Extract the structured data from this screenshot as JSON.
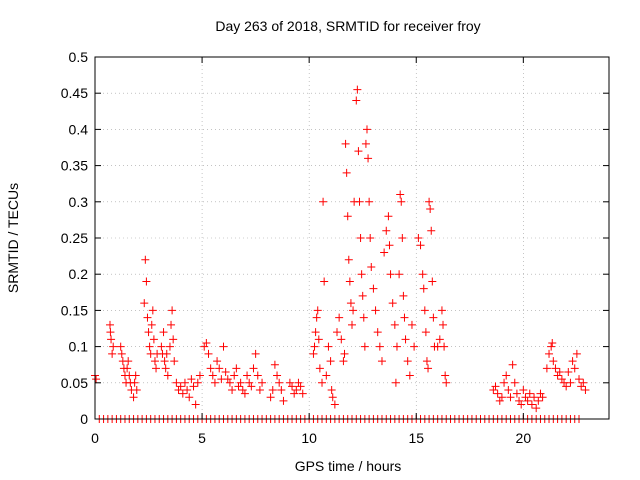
{
  "chart_data": {
    "type": "scatter",
    "title": "Day 263 of 2018, SRMTID for receiver froy",
    "xlabel": "GPS time / hours",
    "ylabel": "SRMTID / TECUs",
    "xlim": [
      0,
      24
    ],
    "ylim": [
      0,
      0.5
    ],
    "xticks": [
      0,
      5,
      10,
      15,
      20
    ],
    "xtick_labels": [
      "0",
      "5",
      "10",
      "15",
      "20"
    ],
    "yticks": [
      0,
      0.05,
      0.1,
      0.15,
      0.2,
      0.25,
      0.3,
      0.35,
      0.4,
      0.45,
      0.5
    ],
    "ytick_labels": [
      "0",
      "0.05",
      "0.1",
      "0.15",
      "0.2",
      "0.25",
      "0.3",
      "0.35",
      "0.4",
      "0.45",
      "0.5"
    ],
    "grid": true,
    "marker": "+",
    "color": "#ff0000",
    "series": [
      {
        "name": "SRMTID",
        "points": [
          [
            0.0,
            0.06
          ],
          [
            0.05,
            0.055
          ],
          [
            0.7,
            0.13
          ],
          [
            0.72,
            0.12
          ],
          [
            0.75,
            0.11
          ],
          [
            0.8,
            0.09
          ],
          [
            0.85,
            0.1
          ],
          [
            1.2,
            0.1
          ],
          [
            1.25,
            0.09
          ],
          [
            1.3,
            0.08
          ],
          [
            1.35,
            0.07
          ],
          [
            1.4,
            0.06
          ],
          [
            1.45,
            0.05
          ],
          [
            1.5,
            0.07
          ],
          [
            1.55,
            0.08
          ],
          [
            1.6,
            0.06
          ],
          [
            1.65,
            0.05
          ],
          [
            1.7,
            0.04
          ],
          [
            1.8,
            0.03
          ],
          [
            1.85,
            0.05
          ],
          [
            1.9,
            0.06
          ],
          [
            1.95,
            0.04
          ],
          [
            2.3,
            0.16
          ],
          [
            2.35,
            0.22
          ],
          [
            2.4,
            0.19
          ],
          [
            2.45,
            0.14
          ],
          [
            2.5,
            0.12
          ],
          [
            2.55,
            0.1
          ],
          [
            2.6,
            0.09
          ],
          [
            2.65,
            0.13
          ],
          [
            2.7,
            0.15
          ],
          [
            2.75,
            0.11
          ],
          [
            2.8,
            0.08
          ],
          [
            2.85,
            0.07
          ],
          [
            2.9,
            0.09
          ],
          [
            3.1,
            0.1
          ],
          [
            3.15,
            0.09
          ],
          [
            3.2,
            0.12
          ],
          [
            3.25,
            0.08
          ],
          [
            3.3,
            0.07
          ],
          [
            3.35,
            0.09
          ],
          [
            3.4,
            0.06
          ],
          [
            3.5,
            0.1
          ],
          [
            3.55,
            0.13
          ],
          [
            3.6,
            0.15
          ],
          [
            3.65,
            0.11
          ],
          [
            3.7,
            0.08
          ],
          [
            3.8,
            0.05
          ],
          [
            3.9,
            0.04
          ],
          [
            4.0,
            0.045
          ],
          [
            4.1,
            0.035
          ],
          [
            4.2,
            0.05
          ],
          [
            4.3,
            0.04
          ],
          [
            4.4,
            0.03
          ],
          [
            4.5,
            0.055
          ],
          [
            4.6,
            0.045
          ],
          [
            4.7,
            0.02
          ],
          [
            4.8,
            0.05
          ],
          [
            4.9,
            0.06
          ],
          [
            5.1,
            0.1
          ],
          [
            5.2,
            0.105
          ],
          [
            5.3,
            0.09
          ],
          [
            5.4,
            0.07
          ],
          [
            5.5,
            0.06
          ],
          [
            5.6,
            0.05
          ],
          [
            5.7,
            0.08
          ],
          [
            5.8,
            0.07
          ],
          [
            5.9,
            0.055
          ],
          [
            6.0,
            0.1
          ],
          [
            6.1,
            0.065
          ],
          [
            6.2,
            0.055
          ],
          [
            6.3,
            0.05
          ],
          [
            6.4,
            0.04
          ],
          [
            6.5,
            0.06
          ],
          [
            6.6,
            0.07
          ],
          [
            6.7,
            0.045
          ],
          [
            6.8,
            0.05
          ],
          [
            6.9,
            0.04
          ],
          [
            7.0,
            0.035
          ],
          [
            7.1,
            0.06
          ],
          [
            7.2,
            0.05
          ],
          [
            7.3,
            0.045
          ],
          [
            7.4,
            0.07
          ],
          [
            7.5,
            0.09
          ],
          [
            7.6,
            0.06
          ],
          [
            7.7,
            0.04
          ],
          [
            7.8,
            0.05
          ],
          [
            8.2,
            0.03
          ],
          [
            8.3,
            0.04
          ],
          [
            8.4,
            0.075
          ],
          [
            8.5,
            0.06
          ],
          [
            8.6,
            0.05
          ],
          [
            8.7,
            0.04
          ],
          [
            8.8,
            0.025
          ],
          [
            9.1,
            0.05
          ],
          [
            9.2,
            0.045
          ],
          [
            9.3,
            0.035
          ],
          [
            9.4,
            0.04
          ],
          [
            9.5,
            0.05
          ],
          [
            9.6,
            0.045
          ],
          [
            9.7,
            0.035
          ],
          [
            10.2,
            0.09
          ],
          [
            10.25,
            0.1
          ],
          [
            10.3,
            0.12
          ],
          [
            10.35,
            0.14
          ],
          [
            10.4,
            0.15
          ],
          [
            10.45,
            0.11
          ],
          [
            10.5,
            0.07
          ],
          [
            10.6,
            0.05
          ],
          [
            10.65,
            0.3
          ],
          [
            10.7,
            0.19
          ],
          [
            10.8,
            0.06
          ],
          [
            10.9,
            0.1
          ],
          [
            11.0,
            0.08
          ],
          [
            11.05,
            0.04
          ],
          [
            11.1,
            0.03
          ],
          [
            11.2,
            0.02
          ],
          [
            11.3,
            0.12
          ],
          [
            11.4,
            0.14
          ],
          [
            11.5,
            0.11
          ],
          [
            11.6,
            0.08
          ],
          [
            11.65,
            0.09
          ],
          [
            11.7,
            0.38
          ],
          [
            11.75,
            0.34
          ],
          [
            11.8,
            0.28
          ],
          [
            11.85,
            0.22
          ],
          [
            11.9,
            0.19
          ],
          [
            11.95,
            0.16
          ],
          [
            12.0,
            0.13
          ],
          [
            12.05,
            0.15
          ],
          [
            12.1,
            0.3
          ],
          [
            12.2,
            0.44
          ],
          [
            12.25,
            0.455
          ],
          [
            12.3,
            0.37
          ],
          [
            12.35,
            0.3
          ],
          [
            12.4,
            0.25
          ],
          [
            12.45,
            0.2
          ],
          [
            12.5,
            0.17
          ],
          [
            12.55,
            0.14
          ],
          [
            12.6,
            0.1
          ],
          [
            12.65,
            0.38
          ],
          [
            12.7,
            0.4
          ],
          [
            12.75,
            0.36
          ],
          [
            12.8,
            0.3
          ],
          [
            12.85,
            0.25
          ],
          [
            12.9,
            0.21
          ],
          [
            13.0,
            0.18
          ],
          [
            13.1,
            0.15
          ],
          [
            13.2,
            0.12
          ],
          [
            13.3,
            0.1
          ],
          [
            13.4,
            0.08
          ],
          [
            13.5,
            0.23
          ],
          [
            13.6,
            0.26
          ],
          [
            13.7,
            0.28
          ],
          [
            13.75,
            0.24
          ],
          [
            13.8,
            0.2
          ],
          [
            13.9,
            0.16
          ],
          [
            14.0,
            0.13
          ],
          [
            14.05,
            0.05
          ],
          [
            14.1,
            0.1
          ],
          [
            14.2,
            0.2
          ],
          [
            14.25,
            0.31
          ],
          [
            14.3,
            0.3
          ],
          [
            14.35,
            0.25
          ],
          [
            14.4,
            0.17
          ],
          [
            14.45,
            0.14
          ],
          [
            14.5,
            0.11
          ],
          [
            14.6,
            0.08
          ],
          [
            14.7,
            0.06
          ],
          [
            14.8,
            0.13
          ],
          [
            14.9,
            0.1
          ],
          [
            15.1,
            0.25
          ],
          [
            15.2,
            0.24
          ],
          [
            15.3,
            0.2
          ],
          [
            15.35,
            0.18
          ],
          [
            15.4,
            0.15
          ],
          [
            15.45,
            0.12
          ],
          [
            15.5,
            0.08
          ],
          [
            15.55,
            0.07
          ],
          [
            15.6,
            0.3
          ],
          [
            15.65,
            0.29
          ],
          [
            15.7,
            0.26
          ],
          [
            15.75,
            0.19
          ],
          [
            15.8,
            0.14
          ],
          [
            15.85,
            0.1
          ],
          [
            16.0,
            0.1
          ],
          [
            16.1,
            0.11
          ],
          [
            16.2,
            0.15
          ],
          [
            16.25,
            0.13
          ],
          [
            16.3,
            0.1
          ],
          [
            16.35,
            0.06
          ],
          [
            16.4,
            0.05
          ],
          [
            18.6,
            0.04
          ],
          [
            18.7,
            0.045
          ],
          [
            18.8,
            0.035
          ],
          [
            18.9,
            0.025
          ],
          [
            19.0,
            0.03
          ],
          [
            19.1,
            0.05
          ],
          [
            19.2,
            0.06
          ],
          [
            19.3,
            0.04
          ],
          [
            19.4,
            0.03
          ],
          [
            19.5,
            0.075
          ],
          [
            19.6,
            0.05
          ],
          [
            19.7,
            0.035
          ],
          [
            19.8,
            0.025
          ],
          [
            19.9,
            0.02
          ],
          [
            20.0,
            0.04
          ],
          [
            20.1,
            0.03
          ],
          [
            20.2,
            0.025
          ],
          [
            20.3,
            0.035
          ],
          [
            20.4,
            0.02
          ],
          [
            20.5,
            0.03
          ],
          [
            20.6,
            0.015
          ],
          [
            20.7,
            0.025
          ],
          [
            20.8,
            0.035
          ],
          [
            20.9,
            0.03
          ],
          [
            21.1,
            0.07
          ],
          [
            21.2,
            0.09
          ],
          [
            21.3,
            0.1
          ],
          [
            21.35,
            0.105
          ],
          [
            21.4,
            0.08
          ],
          [
            21.5,
            0.07
          ],
          [
            21.6,
            0.06
          ],
          [
            21.7,
            0.065
          ],
          [
            21.8,
            0.055
          ],
          [
            21.9,
            0.05
          ],
          [
            22.0,
            0.045
          ],
          [
            22.1,
            0.065
          ],
          [
            22.2,
            0.05
          ],
          [
            22.3,
            0.08
          ],
          [
            22.4,
            0.07
          ],
          [
            22.5,
            0.09
          ],
          [
            22.6,
            0.055
          ],
          [
            22.7,
            0.045
          ],
          [
            22.8,
            0.05
          ],
          [
            22.9,
            0.04
          ]
        ],
        "zero_points": [
          0.2,
          0.4,
          0.6,
          0.8,
          1.0,
          1.2,
          1.4,
          1.6,
          1.8,
          2.0,
          2.2,
          2.4,
          2.6,
          2.8,
          3.0,
          3.2,
          3.4,
          3.6,
          3.8,
          4.0,
          4.2,
          4.4,
          4.6,
          4.8,
          5.0,
          5.2,
          5.4,
          5.6,
          5.8,
          6.0,
          6.2,
          6.4,
          6.6,
          6.8,
          7.0,
          7.2,
          7.4,
          7.6,
          7.8,
          8.0,
          8.2,
          8.4,
          8.6,
          8.8,
          9.0,
          9.2,
          9.4,
          9.6,
          9.8,
          10.0,
          10.2,
          10.4,
          10.6,
          10.8,
          11.0,
          11.2,
          11.4,
          11.6,
          11.8,
          12.0,
          12.2,
          12.4,
          12.6,
          12.8,
          13.0,
          13.2,
          13.4,
          13.6,
          13.8,
          14.0,
          14.2,
          14.4,
          14.6,
          14.8,
          15.0,
          15.2,
          15.4,
          15.6,
          15.8,
          16.0,
          16.2,
          16.4,
          16.6,
          16.8,
          17.0,
          17.2,
          17.4,
          17.6,
          17.8,
          18.0,
          18.2,
          18.4,
          18.6,
          18.8,
          19.0,
          19.2,
          19.4,
          19.6,
          19.8,
          20.0,
          20.2,
          20.4,
          20.6,
          20.8,
          21.0,
          21.2,
          21.4,
          21.6,
          21.8,
          22.0,
          22.2,
          22.4,
          22.6
        ]
      }
    ]
  }
}
